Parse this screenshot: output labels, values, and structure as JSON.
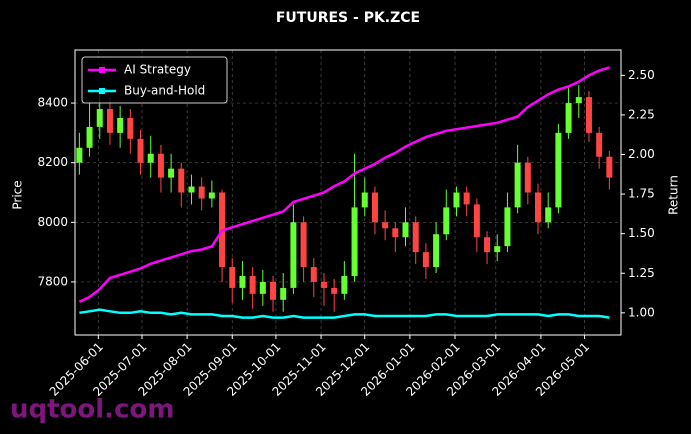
{
  "chart_data": {
    "type": "candlestick",
    "title": "FUTURES - PK.ZCE",
    "y_label": "Price",
    "y2_label": "Return",
    "watermark": "uqtool.com",
    "x": [
      "2025-05-19",
      "2025-05-26",
      "2025-06-02",
      "2025-06-09",
      "2025-06-16",
      "2025-06-23",
      "2025-06-30",
      "2025-07-07",
      "2025-07-14",
      "2025-07-21",
      "2025-07-28",
      "2025-08-04",
      "2025-08-11",
      "2025-08-18",
      "2025-08-25",
      "2025-09-01",
      "2025-09-08",
      "2025-09-15",
      "2025-09-22",
      "2025-09-29",
      "2025-10-06",
      "2025-10-13",
      "2025-10-20",
      "2025-10-27",
      "2025-11-03",
      "2025-11-10",
      "2025-11-17",
      "2025-11-24",
      "2025-12-01",
      "2025-12-08",
      "2025-12-15",
      "2025-12-22",
      "2025-12-29",
      "2026-01-05",
      "2026-01-12",
      "2026-01-19",
      "2026-01-26",
      "2026-02-02",
      "2026-02-09",
      "2026-02-16",
      "2026-02-23",
      "2026-03-02",
      "2026-03-09",
      "2026-03-16",
      "2026-03-23",
      "2026-03-30",
      "2026-04-06",
      "2026-04-13",
      "2026-04-20",
      "2026-04-27",
      "2026-05-04",
      "2026-05-11",
      "2026-05-18"
    ],
    "ohlc": {
      "open": [
        8200,
        8250,
        8320,
        8380,
        8300,
        8350,
        8280,
        8200,
        8230,
        8150,
        8180,
        8100,
        8120,
        8080,
        8100,
        7850,
        7780,
        7820,
        7760,
        7800,
        7740,
        7780,
        8000,
        7850,
        7800,
        7780,
        7760,
        7820,
        8050,
        8100,
        8000,
        7980,
        7950,
        8000,
        7900,
        7850,
        7960,
        8050,
        8100,
        8060,
        7950,
        7900,
        7920,
        8050,
        8200,
        8100,
        8000,
        8050,
        8300,
        8400,
        8420,
        8300,
        8220
      ],
      "high": [
        8300,
        8400,
        8440,
        8420,
        8390,
        8380,
        8310,
        8290,
        8260,
        8230,
        8200,
        8160,
        8150,
        8140,
        8110,
        7880,
        7870,
        7850,
        7840,
        7820,
        7830,
        8060,
        8020,
        7880,
        7830,
        7810,
        7870,
        8230,
        8150,
        8120,
        8040,
        8000,
        8050,
        8020,
        7930,
        8000,
        8110,
        8120,
        8120,
        8080,
        7970,
        7960,
        8100,
        8260,
        8220,
        8130,
        8100,
        8330,
        8460,
        8460,
        8440,
        8320,
        8240
      ],
      "low": [
        8160,
        8220,
        8280,
        8260,
        8250,
        8230,
        8160,
        8150,
        8100,
        8100,
        8050,
        8060,
        8040,
        8050,
        7800,
        7730,
        7740,
        7710,
        7720,
        7700,
        7700,
        7760,
        7800,
        7750,
        7720,
        7700,
        7740,
        7800,
        8020,
        7960,
        7940,
        7900,
        7920,
        7860,
        7810,
        7830,
        7940,
        8020,
        8020,
        7900,
        7860,
        7870,
        7900,
        8030,
        8060,
        7960,
        7980,
        8030,
        8280,
        8350,
        8270,
        8180,
        8110
      ],
      "close": [
        8250,
        8320,
        8380,
        8300,
        8350,
        8280,
        8200,
        8230,
        8150,
        8180,
        8100,
        8120,
        8080,
        8100,
        7850,
        7780,
        7820,
        7760,
        7800,
        7740,
        7780,
        8000,
        7850,
        7800,
        7780,
        7760,
        7820,
        8050,
        8100,
        8000,
        7980,
        7950,
        8000,
        7900,
        7850,
        7960,
        8050,
        8100,
        8060,
        7950,
        7900,
        7920,
        8050,
        8200,
        8100,
        8000,
        8050,
        8300,
        8400,
        8420,
        8300,
        8220,
        8150
      ]
    },
    "up_color": "#66ff33",
    "down_color": "#ff4444",
    "series": [
      {
        "name": "AI Strategy",
        "color": "#ff00ff",
        "axis": "y2",
        "values": [
          1.07,
          1.1,
          1.15,
          1.22,
          1.24,
          1.26,
          1.28,
          1.31,
          1.33,
          1.35,
          1.37,
          1.39,
          1.4,
          1.42,
          1.52,
          1.54,
          1.56,
          1.58,
          1.6,
          1.62,
          1.64,
          1.7,
          1.72,
          1.74,
          1.76,
          1.8,
          1.83,
          1.88,
          1.91,
          1.94,
          1.98,
          2.01,
          2.05,
          2.08,
          2.11,
          2.13,
          2.15,
          2.16,
          2.17,
          2.18,
          2.19,
          2.2,
          2.22,
          2.24,
          2.3,
          2.34,
          2.38,
          2.41,
          2.43,
          2.46,
          2.5,
          2.53,
          2.55
        ]
      },
      {
        "name": "Buy-and-Hold",
        "color": "#00ffff",
        "axis": "y2",
        "values": [
          1.0,
          1.01,
          1.02,
          1.01,
          1.0,
          1.0,
          1.01,
          1.0,
          1.0,
          0.99,
          1.0,
          0.99,
          0.99,
          0.99,
          0.98,
          0.98,
          0.97,
          0.97,
          0.98,
          0.97,
          0.97,
          0.98,
          0.97,
          0.97,
          0.97,
          0.97,
          0.98,
          0.99,
          0.99,
          0.98,
          0.98,
          0.98,
          0.98,
          0.98,
          0.98,
          0.99,
          0.99,
          0.98,
          0.98,
          0.98,
          0.98,
          0.99,
          0.99,
          0.99,
          0.99,
          0.99,
          0.98,
          0.99,
          0.99,
          0.98,
          0.98,
          0.98,
          0.97
        ]
      }
    ],
    "xlim": [
      "2025-05-16",
      "2026-05-26"
    ],
    "xticks": [
      "2025-06-01",
      "2025-07-01",
      "2025-08-01",
      "2025-09-01",
      "2025-10-01",
      "2025-11-01",
      "2025-12-01",
      "2026-01-01",
      "2026-02-01",
      "2026-03-01",
      "2026-04-01",
      "2026-05-01"
    ],
    "ylim": [
      7622,
      8578
    ],
    "yticks": [
      7800,
      8000,
      8200,
      8400
    ],
    "y2lim": [
      0.86,
      2.66
    ],
    "y2ticks": [
      {
        "value": 1,
        "label": "1.00"
      },
      {
        "value": 1.25,
        "label": "1.25"
      },
      {
        "value": 1.5,
        "label": "1.50"
      },
      {
        "value": 1.75,
        "label": "1.75"
      },
      {
        "value": 2,
        "label": "2.00"
      },
      {
        "value": 2.25,
        "label": "2.25"
      },
      {
        "value": 2.5,
        "label": "2.50"
      }
    ],
    "grid": true,
    "legend": "upper left"
  }
}
